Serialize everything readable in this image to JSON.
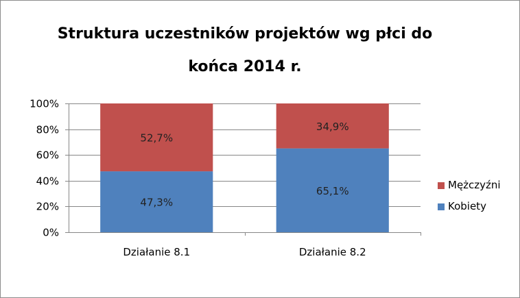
{
  "chart_data": {
    "type": "bar",
    "stacked": true,
    "percent": true,
    "title_lines": [
      "Struktura uczestników projektów wg płci do",
      "końca 2014 r."
    ],
    "categories": [
      "Działanie 8.1",
      "Działanie 8.2"
    ],
    "series": [
      {
        "name": "Kobiety",
        "values": [
          47.3,
          65.1
        ],
        "labels": [
          "47,3%",
          "65,1%"
        ],
        "color": "#4f81bd"
      },
      {
        "name": "Mężczyźni",
        "values": [
          52.7,
          34.9
        ],
        "labels": [
          "52,7%",
          "34,9%"
        ],
        "color": "#c0504d"
      }
    ],
    "ylim": [
      0,
      100
    ],
    "y_ticks": [
      0,
      20,
      40,
      60,
      80,
      100
    ],
    "y_tick_labels": [
      "0%",
      "20%",
      "40%",
      "60%",
      "80%",
      "100%"
    ],
    "grid": true,
    "legend": {
      "position": "right",
      "order": [
        "Mężczyźni",
        "Kobiety"
      ]
    },
    "colors": {
      "gridline": "#868686",
      "axis": "#868686",
      "frame": "#8c8c8c"
    }
  }
}
